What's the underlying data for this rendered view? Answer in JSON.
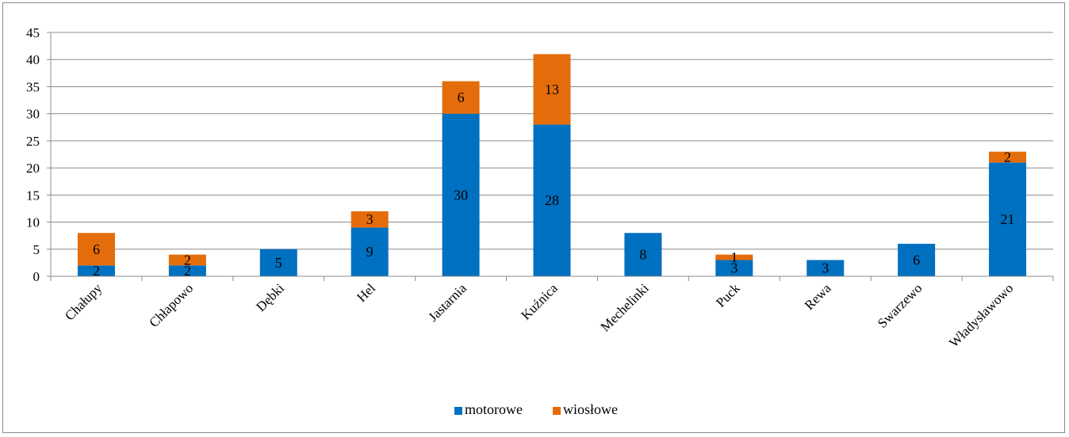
{
  "colors": {
    "motorowe": "#0070c0",
    "wioslowe": "#e46c0a",
    "gridline": "#8c8c8c",
    "axis": "#8c8c8c"
  },
  "chart_data": {
    "type": "bar",
    "stacked": true,
    "title": "",
    "xlabel": "",
    "ylabel": "",
    "ylim": [
      0,
      45
    ],
    "yticks": [
      0,
      5,
      10,
      15,
      20,
      25,
      30,
      35,
      40,
      45
    ],
    "grid": true,
    "legend_position": "bottom",
    "categories": [
      "Chałupy",
      "Chłapowo",
      "Dębki",
      "Hel",
      "Jastarnia",
      "Kuźnica",
      "Mechelinki",
      "Puck",
      "Rewa",
      "Swarzewo",
      "Władysławowo"
    ],
    "series": [
      {
        "name": "motorowe",
        "values": [
          2,
          2,
          5,
          9,
          30,
          28,
          8,
          3,
          3,
          6,
          21
        ]
      },
      {
        "name": "wiosłowe",
        "values": [
          6,
          2,
          null,
          3,
          6,
          13,
          null,
          1,
          null,
          null,
          2
        ]
      }
    ]
  }
}
